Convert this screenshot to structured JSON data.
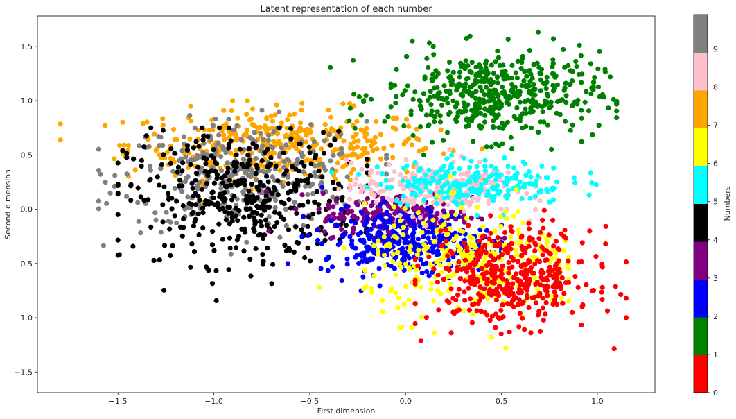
{
  "chart_data": {
    "type": "scatter",
    "title": "Latent representation of each number",
    "xlabel": "First dimension",
    "ylabel": "Second dimension",
    "xlim": [
      -1.92,
      1.3
    ],
    "ylim": [
      -1.69,
      1.78
    ],
    "xticks": [
      -1.5,
      -1.0,
      -0.5,
      0.0,
      0.5,
      1.0
    ],
    "yticks": [
      -1.5,
      -1.0,
      -0.5,
      0.0,
      0.5,
      1.0,
      1.5
    ],
    "grid": false,
    "colorbar": {
      "label": "Numbers",
      "ticks": [
        "0",
        "1",
        "2",
        "3",
        "4",
        "5",
        "6",
        "7",
        "8",
        "9"
      ],
      "colors": [
        "#ff0000",
        "#008000",
        "#0000ff",
        "#800080",
        "#000000",
        "#00ffff",
        "#ffff00",
        "#ffa500",
        "#ffc0cb",
        "#808080"
      ]
    },
    "series": [
      {
        "digit": 0,
        "color": "#ff0000",
        "center": [
          0.55,
          -0.62
        ],
        "spread": [
          0.21,
          0.22
        ],
        "count": 420,
        "range": [
          [
            0.05,
            1.15
          ],
          [
            -1.55,
            0.1
          ]
        ]
      },
      {
        "digit": 1,
        "color": "#008000",
        "center": [
          0.45,
          1.05
        ],
        "spread": [
          0.28,
          0.2
        ],
        "count": 480,
        "range": [
          [
            -0.5,
            1.1
          ],
          [
            0.5,
            1.65
          ]
        ]
      },
      {
        "digit": 2,
        "color": "#0000ff",
        "center": [
          0.0,
          -0.3
        ],
        "spread": [
          0.22,
          0.15
        ],
        "count": 330,
        "range": [
          [
            -0.85,
            0.5
          ],
          [
            -0.8,
            0.2
          ]
        ]
      },
      {
        "digit": 3,
        "color": "#800080",
        "center": [
          -0.05,
          -0.05
        ],
        "spread": [
          0.2,
          0.1
        ],
        "count": 210,
        "range": [
          [
            -0.9,
            0.6
          ],
          [
            -0.4,
            0.3
          ]
        ]
      },
      {
        "digit": 4,
        "color": "#000000",
        "center": [
          -0.85,
          0.1
        ],
        "spread": [
          0.3,
          0.3
        ],
        "count": 420,
        "range": [
          [
            -1.5,
            -0.2
          ],
          [
            -0.9,
            0.75
          ]
        ]
      },
      {
        "digit": 5,
        "color": "#00ffff",
        "center": [
          0.35,
          0.25
        ],
        "spread": [
          0.25,
          0.1
        ],
        "count": 220,
        "range": [
          [
            -0.4,
            1.0
          ],
          [
            -0.1,
            0.55
          ]
        ]
      },
      {
        "digit": 6,
        "color": "#ffff00",
        "center": [
          0.35,
          -0.5
        ],
        "spread": [
          0.28,
          0.25
        ],
        "count": 300,
        "range": [
          [
            -0.6,
            0.85
          ],
          [
            -1.3,
            0.3
          ]
        ]
      },
      {
        "digit": 7,
        "color": "#ffa500",
        "center": [
          -0.65,
          0.6
        ],
        "spread": [
          0.4,
          0.16
        ],
        "count": 380,
        "range": [
          [
            -1.8,
            0.4
          ],
          [
            -0.45,
            1.0
          ]
        ]
      },
      {
        "digit": 8,
        "color": "#ffc0cb",
        "center": [
          0.15,
          0.2
        ],
        "spread": [
          0.22,
          0.12
        ],
        "count": 230,
        "range": [
          [
            -0.5,
            0.7
          ],
          [
            -0.15,
            0.55
          ]
        ]
      },
      {
        "digit": 9,
        "color": "#808080",
        "center": [
          -0.85,
          0.3
        ],
        "spread": [
          0.32,
          0.25
        ],
        "count": 330,
        "range": [
          [
            -1.6,
            -0.1
          ],
          [
            -0.55,
            0.95
          ]
        ]
      }
    ]
  }
}
